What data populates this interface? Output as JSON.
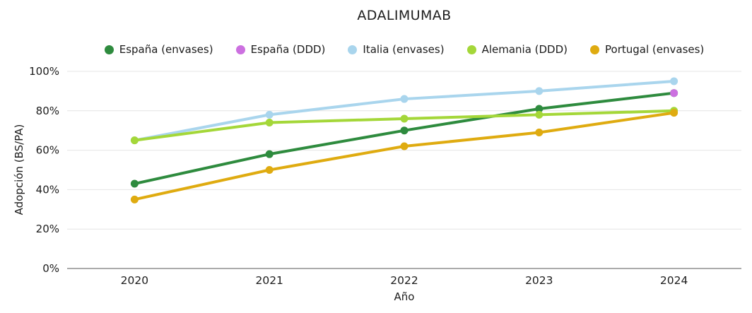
{
  "chart_data": {
    "type": "line",
    "title": "ADALIMUMAB",
    "xlabel": "Año",
    "ylabel": "Adopción (BS/PA)",
    "categories": [
      "2020",
      "2021",
      "2022",
      "2023",
      "2024"
    ],
    "series": [
      {
        "name": "España (envases)",
        "color": "#2e8b3e",
        "values": [
          43,
          58,
          70,
          81,
          89
        ]
      },
      {
        "name": "España (DDD)",
        "color": "#cc70e0",
        "values": [
          null,
          null,
          null,
          null,
          89
        ]
      },
      {
        "name": "Italia (envases)",
        "color": "#a9d5ed",
        "values": [
          65,
          78,
          86,
          90,
          95
        ]
      },
      {
        "name": "Alemania (DDD)",
        "color": "#a4d739",
        "values": [
          65,
          74,
          76,
          78,
          80
        ]
      },
      {
        "name": "Portugal (envases)",
        "color": "#dfab10",
        "values": [
          35,
          50,
          62,
          69,
          79
        ]
      }
    ],
    "ylim": [
      0,
      100
    ],
    "ytick_labels": [
      "0%",
      "20%",
      "40%",
      "60%",
      "80%",
      "100%"
    ],
    "ytick_values": [
      0,
      20,
      40,
      60,
      80,
      100
    ],
    "grid": true,
    "legend_position": "top"
  },
  "colors": {
    "grid": "#e4e4e4",
    "axis_line": "#8f8f8f",
    "tick_text": "#1c1c1c"
  }
}
